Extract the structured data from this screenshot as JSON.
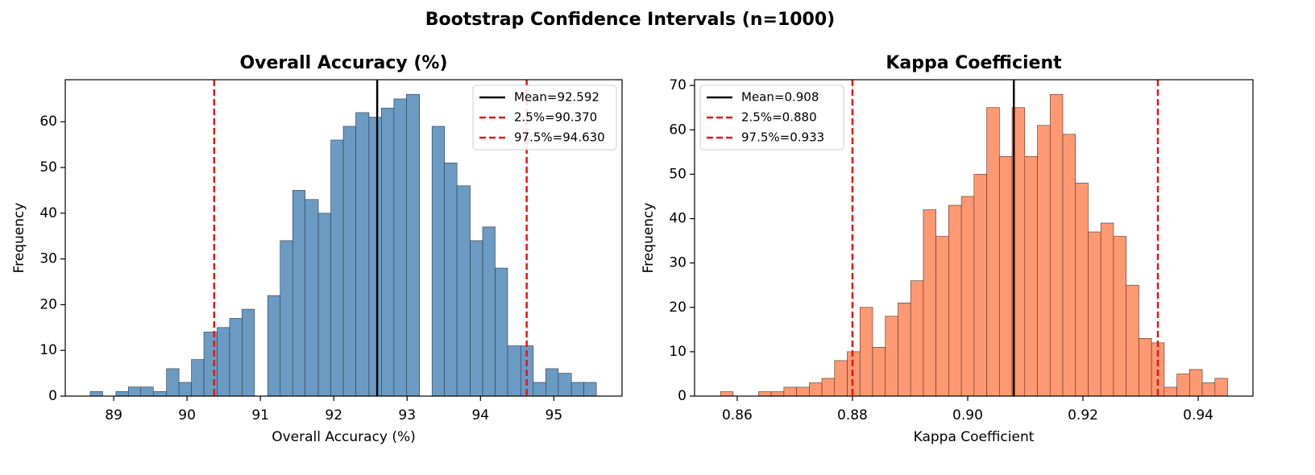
{
  "title": "Bootstrap Confidence Intervals (n=1000)",
  "chart_data": [
    {
      "type": "histogram",
      "title": "Overall Accuracy (%)",
      "x_label": "Overall Accuracy (%)",
      "y_label": "Frequency",
      "color": "#6b9bc3",
      "edgecolor": "#2b3a4a",
      "legend": "upper right",
      "bins": [
        88.68,
        88.85,
        89.03,
        89.2,
        89.37,
        89.54,
        89.72,
        89.89,
        90.06,
        90.23,
        90.41,
        90.58,
        90.75,
        90.92,
        91.1,
        91.27,
        91.44,
        91.61,
        91.79,
        91.96,
        92.13,
        92.3,
        92.48,
        92.65,
        92.82,
        92.99,
        93.17,
        93.34,
        93.51,
        93.68,
        93.86,
        94.03,
        94.2,
        94.37,
        94.55,
        94.72,
        94.89,
        95.06,
        95.24,
        95.41,
        95.58
      ],
      "values": [
        1,
        0,
        1,
        2,
        2,
        1,
        6,
        3,
        8,
        14,
        15,
        17,
        19,
        0,
        22,
        34,
        45,
        43,
        40,
        56,
        59,
        62,
        61,
        63,
        65,
        66,
        0,
        59,
        51,
        46,
        34,
        37,
        28,
        11,
        11,
        3,
        6,
        5,
        3,
        3
      ],
      "vlines": [
        {
          "value": 92.592,
          "label": "Mean=92.592",
          "color": "#000000",
          "dashed": false
        },
        {
          "value": 90.37,
          "label": "2.5%=90.370",
          "color": "#ee1111",
          "dashed": true
        },
        {
          "value": 94.63,
          "label": "97.5%=94.630",
          "color": "#ee1111",
          "dashed": true
        }
      ],
      "xlim": [
        88.34,
        95.93
      ],
      "xticks": [
        89,
        90,
        91,
        92,
        93,
        94,
        95
      ],
      "ylim": [
        0,
        69.2
      ],
      "yticks": [
        0,
        10,
        20,
        30,
        40,
        50,
        60
      ]
    },
    {
      "type": "histogram",
      "title": "Kappa Coefficient",
      "x_label": "Kappa Coefficient",
      "y_label": "Frequency",
      "color": "#fc9972",
      "edgecolor": "#5a3020",
      "legend": "upper left",
      "bins": [
        0.8571,
        0.8593,
        0.8615,
        0.8637,
        0.8659,
        0.8681,
        0.8703,
        0.8725,
        0.8747,
        0.8769,
        0.8791,
        0.8813,
        0.8835,
        0.8857,
        0.8879,
        0.8901,
        0.8923,
        0.8945,
        0.8967,
        0.8989,
        0.9011,
        0.9033,
        0.9055,
        0.9077,
        0.9099,
        0.9121,
        0.9143,
        0.9165,
        0.9187,
        0.9209,
        0.9231,
        0.9253,
        0.9275,
        0.9297,
        0.9319,
        0.9341,
        0.9363,
        0.9385,
        0.9407,
        0.9429,
        0.9451
      ],
      "values": [
        1,
        0,
        0,
        1,
        1,
        2,
        2,
        3,
        4,
        8,
        10,
        20,
        11,
        18,
        21,
        26,
        42,
        36,
        43,
        45,
        50,
        65,
        54,
        65,
        54,
        61,
        68,
        59,
        48,
        37,
        39,
        36,
        25,
        13,
        12,
        2,
        5,
        6,
        3,
        4
      ],
      "vlines": [
        {
          "value": 0.908,
          "label": "Mean=0.908",
          "color": "#000000",
          "dashed": false
        },
        {
          "value": 0.88,
          "label": "2.5%=0.880",
          "color": "#ee1111",
          "dashed": true
        },
        {
          "value": 0.933,
          "label": "97.5%=0.933",
          "color": "#ee1111",
          "dashed": true
        }
      ],
      "xlim": [
        0.8526,
        0.9495
      ],
      "xticks": [
        0.86,
        0.88,
        {
          "value": 0.9,
          "label": "0.90"
        },
        0.92,
        0.94
      ],
      "ylim": [
        0,
        71.3
      ],
      "yticks": [
        0,
        10,
        20,
        30,
        40,
        50,
        60,
        70
      ]
    }
  ]
}
